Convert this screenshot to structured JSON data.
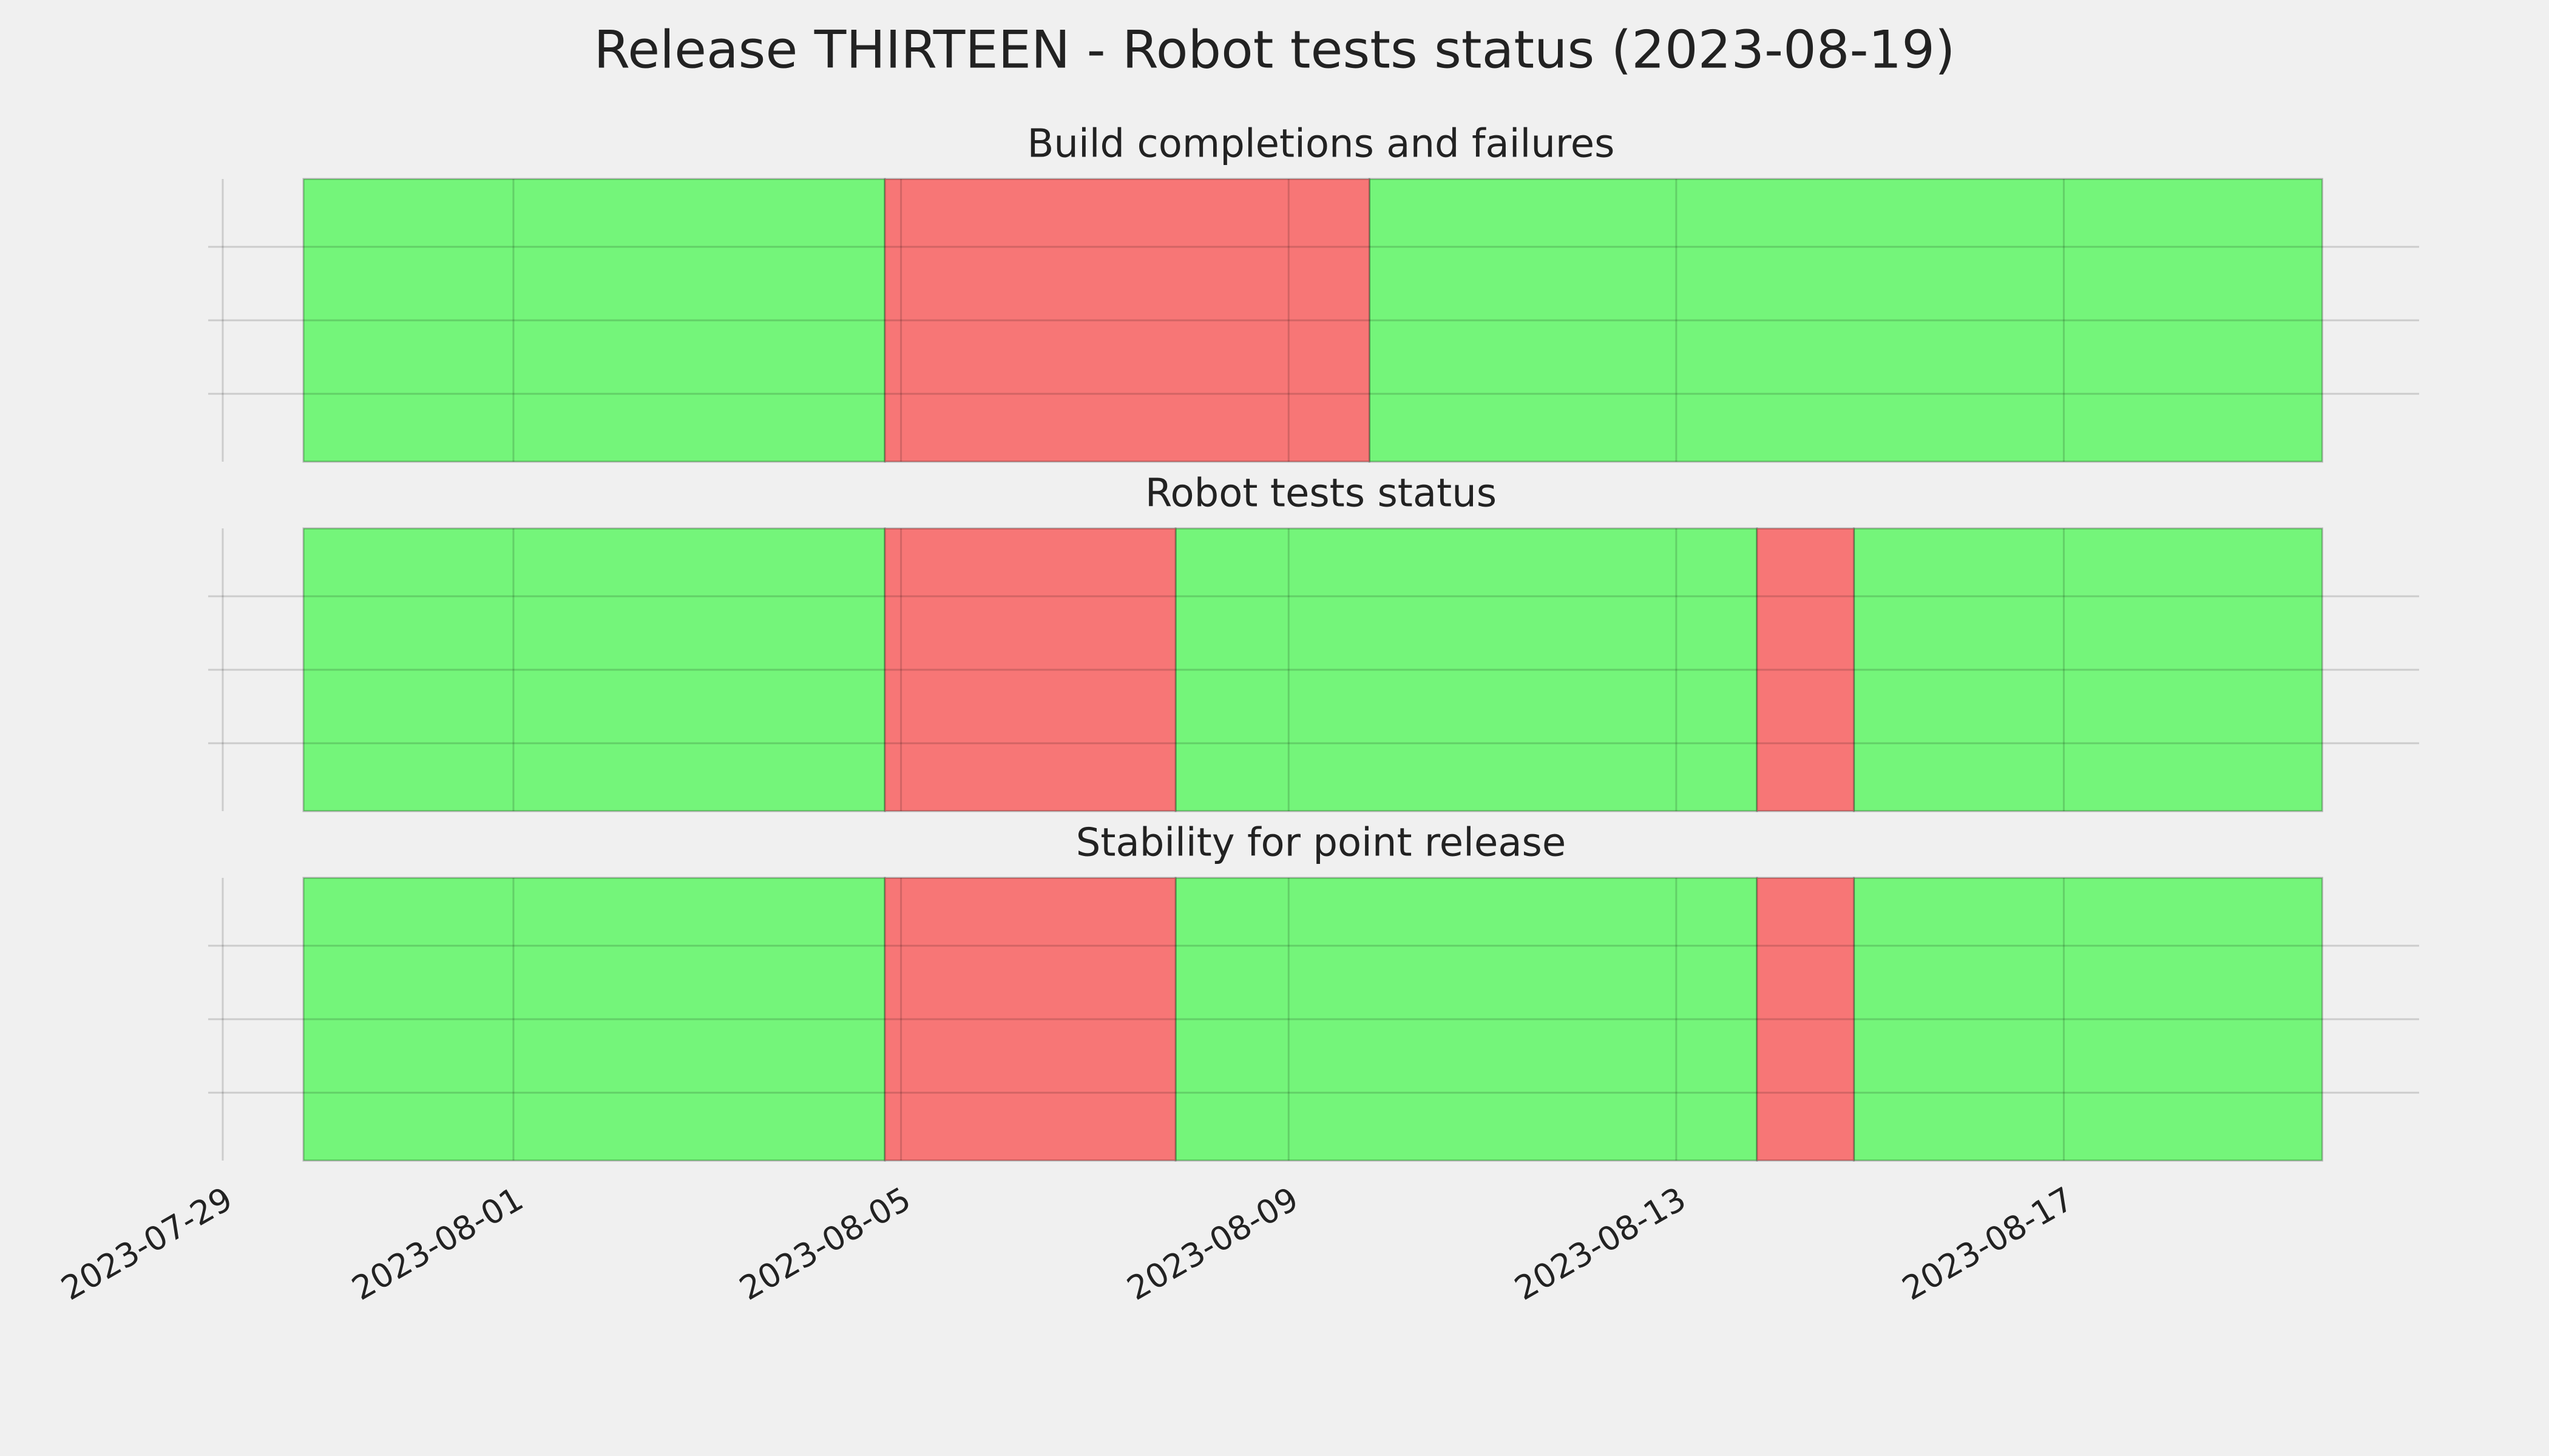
{
  "title": "Release THIRTEEN - Robot tests status (2023-08-19)",
  "chart_data": [
    {
      "type": "timeline",
      "title": "Build completions and failures",
      "xlim": [
        "2023-07-29T00:00",
        "2023-08-20T16:00"
      ],
      "xticks": [
        "2023-07-29",
        "2023-08-01",
        "2023-08-05",
        "2023-08-09",
        "2023-08-13",
        "2023-08-17"
      ],
      "grid": true,
      "series": [
        {
          "color": "#74f57a",
          "spans": [
            [
              "2023-07-29T20:00",
              "2023-08-04T20:00"
            ],
            [
              "2023-08-09T20:00",
              "2023-08-19T16:00"
            ]
          ]
        },
        {
          "color": "#f77676",
          "spans": [
            [
              "2023-08-04T20:00",
              "2023-08-09T20:00"
            ]
          ]
        }
      ]
    },
    {
      "type": "timeline",
      "title": "Robot tests status",
      "xlim": [
        "2023-07-29T00:00",
        "2023-08-20T16:00"
      ],
      "xticks": [
        "2023-07-29",
        "2023-08-01",
        "2023-08-05",
        "2023-08-09",
        "2023-08-13",
        "2023-08-17"
      ],
      "grid": true,
      "series": [
        {
          "color": "#74f57a",
          "spans": [
            [
              "2023-07-29T20:00",
              "2023-08-04T20:00"
            ],
            [
              "2023-08-07T20:00",
              "2023-08-13T20:00"
            ],
            [
              "2023-08-14T20:00",
              "2023-08-19T16:00"
            ]
          ]
        },
        {
          "color": "#f77676",
          "spans": [
            [
              "2023-08-04T20:00",
              "2023-08-07T20:00"
            ],
            [
              "2023-08-13T20:00",
              "2023-08-14T20:00"
            ]
          ]
        }
      ]
    },
    {
      "type": "timeline",
      "title": "Stability for point release",
      "xlim": [
        "2023-07-29T00:00",
        "2023-08-20T16:00"
      ],
      "xticks": [
        "2023-07-29",
        "2023-08-01",
        "2023-08-05",
        "2023-08-09",
        "2023-08-13",
        "2023-08-17"
      ],
      "grid": true,
      "series": [
        {
          "color": "#74f57a",
          "spans": [
            [
              "2023-07-29T20:00",
              "2023-08-04T20:00"
            ],
            [
              "2023-08-07T20:00",
              "2023-08-13T20:00"
            ],
            [
              "2023-08-14T20:00",
              "2023-08-19T16:00"
            ]
          ]
        },
        {
          "color": "#f77676",
          "spans": [
            [
              "2023-08-04T20:00",
              "2023-08-07T20:00"
            ],
            [
              "2023-08-13T20:00",
              "2023-08-14T20:00"
            ]
          ]
        }
      ]
    }
  ]
}
